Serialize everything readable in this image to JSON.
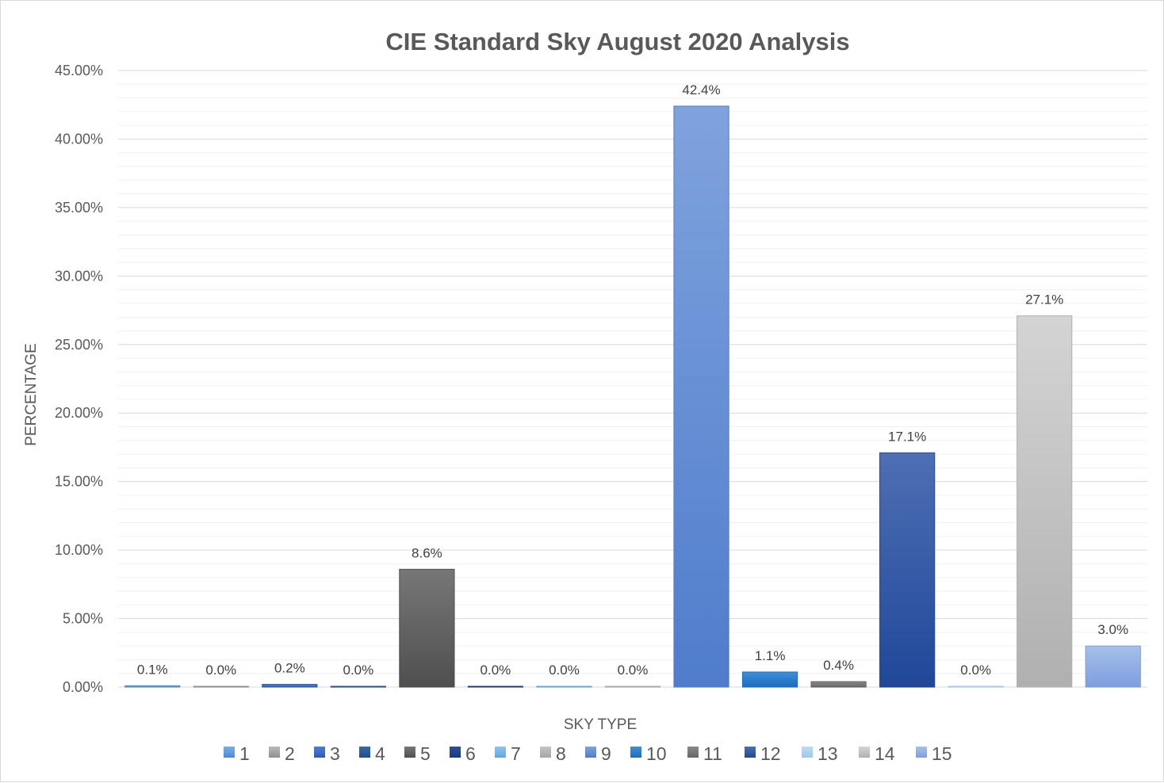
{
  "chart_data": {
    "type": "bar",
    "title": "CIE Standard Sky August 2020 Analysis",
    "xlabel": "SKY TYPE",
    "ylabel": "PERCENTAGE",
    "ylim": [
      0,
      45
    ],
    "yticks": [
      "0.00%",
      "5.00%",
      "10.00%",
      "15.00%",
      "20.00%",
      "25.00%",
      "30.00%",
      "35.00%",
      "40.00%",
      "45.00%"
    ],
    "grid": true,
    "minor_grid": true,
    "legend_position": "bottom",
    "categories": [
      "1",
      "2",
      "3",
      "4",
      "5",
      "6",
      "7",
      "8",
      "9",
      "10",
      "11",
      "12",
      "13",
      "14",
      "15"
    ],
    "values": [
      0.1,
      0.0,
      0.2,
      0.0,
      8.6,
      0.0,
      0.0,
      0.0,
      42.4,
      1.1,
      0.4,
      17.1,
      0.0,
      27.1,
      3.0
    ],
    "data_labels": [
      "0.1%",
      "0.0%",
      "0.2%",
      "0.0%",
      "8.6%",
      "0.0%",
      "0.0%",
      "0.0%",
      "42.4%",
      "1.1%",
      "0.4%",
      "17.1%",
      "0.0%",
      "27.1%",
      "3.0%"
    ],
    "colors": [
      [
        "#7ab0e6",
        "#4a8ad4"
      ],
      [
        "#b8b8b8",
        "#8e8e8e"
      ],
      [
        "#4d7fd6",
        "#2b5cb8"
      ],
      [
        "#3a6aa8",
        "#1f4e8c"
      ],
      [
        "#777777",
        "#4f4f4f"
      ],
      [
        "#2d4f99",
        "#1b3a80"
      ],
      [
        "#8ec4f0",
        "#5ea6e4"
      ],
      [
        "#c4c4c4",
        "#a6a6a6"
      ],
      [
        "#7fa3dd",
        "#4f7ccc"
      ],
      [
        "#3f8fd8",
        "#1a6cc0"
      ],
      [
        "#8a8a8a",
        "#666666"
      ],
      [
        "#4d6fb3",
        "#21479a"
      ],
      [
        "#bcdcf5",
        "#9cc9ef"
      ],
      [
        "#d4d4d4",
        "#b0b0b0"
      ],
      [
        "#a6c0ea",
        "#7d9edf"
      ]
    ]
  }
}
